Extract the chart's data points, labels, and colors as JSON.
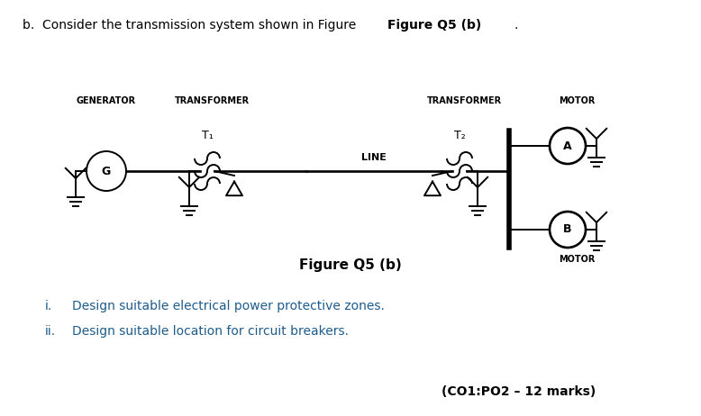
{
  "background": "#ffffff",
  "line_color": "#000000",
  "blue_text_color": "#1f5c8b",
  "title_normal": "b.  Consider the transmission system shown in Figure ",
  "title_bold": "Figure Q5 (b)",
  "title_end": ".",
  "header_generator": "GENERATOR",
  "header_transformer1": "TRANSFORMER",
  "header_transformer2": "TRANSFORMER",
  "header_motor": "MOTOR",
  "label_t1": "T₁",
  "label_t2": "T₂",
  "label_line": "LINE",
  "label_a": "A",
  "label_b": "B",
  "label_motor": "MOTOR",
  "figure_caption": "Figure Q5 (b)",
  "question_i": "Design suitable electrical power protective zones.",
  "question_ii": "Design suitable location for circuit breakers.",
  "marks": "(CO1:PO2 – 12 marks)"
}
